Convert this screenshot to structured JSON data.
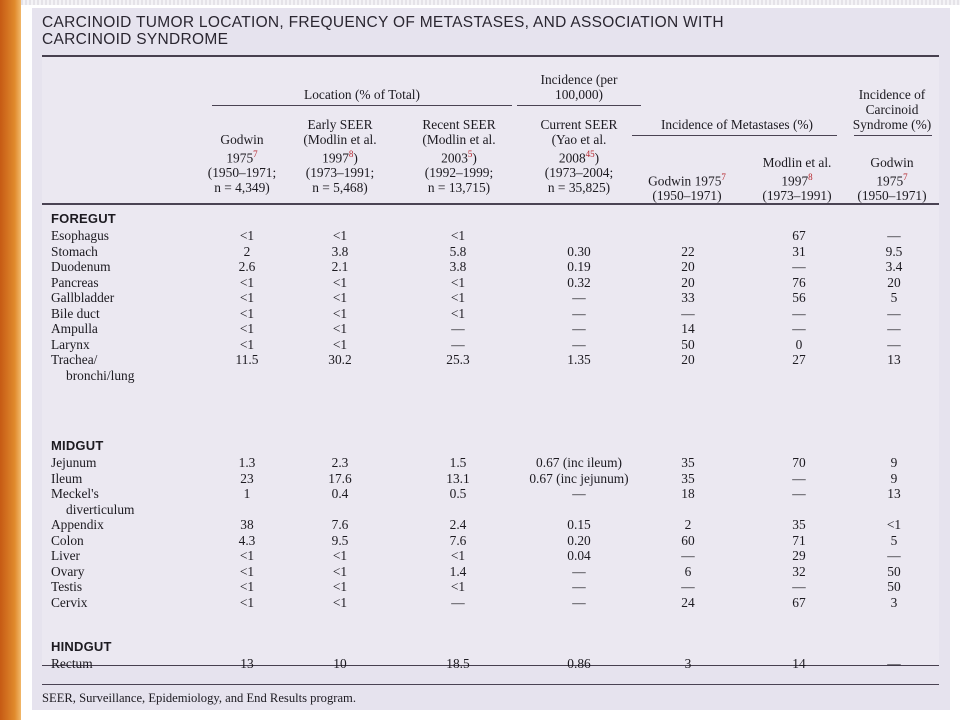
{
  "title": {
    "line1": "CARCINOID TUMOR LOCATION, FREQUENCY OF METASTASES, AND ASSOCIATION WITH",
    "line2": "CARCINOID SYNDROME"
  },
  "header": {
    "location_group": "Location (% of Total)",
    "incidence_group_l1": "Incidence (per",
    "incidence_group_l2": "100,000)",
    "metastases_group": "Incidence of Metastases (%)",
    "syndrome_l1": "Incidence of",
    "syndrome_l2": "Carcinoid",
    "syndrome_l3": "Syndrome (%)",
    "cols": [
      {
        "l1": "Godwin",
        "l2": "1975",
        "ref": "7",
        "l3": "(1950–1971;",
        "l4": "n = 4,349)"
      },
      {
        "l1": "Early SEER",
        "l2": "(Modlin et al.",
        "l3": "1997",
        "ref": "8",
        "l3b": ")",
        "l4": "(1973–1991;",
        "l5": "n = 5,468)"
      },
      {
        "l1": "Recent SEER",
        "l2": "(Modlin et al.",
        "l3": "2003",
        "ref": "5",
        "l3b": ")",
        "l4": "(1992–1999;",
        "l5": "n = 13,715)"
      },
      {
        "l1": "Current SEER",
        "l2": "(Yao et al.",
        "l3": "2008",
        "ref": "45",
        "l3b": ")",
        "l4": "(1973–2004;",
        "l5": "n = 35,825)"
      },
      {
        "l1": "Godwin 1975",
        "ref": "7",
        "l2": "(1950–1971)"
      },
      {
        "l1": "Modlin et al.",
        "l2": "1997",
        "ref": "8",
        "l3": "(1973–1991)"
      },
      {
        "l1": "Godwin",
        "l2": "1975",
        "ref": "7",
        "l3": "(1950–1971)"
      }
    ]
  },
  "sections": {
    "foregut": "FOREGUT",
    "midgut": "MIDGUT",
    "hindgut": "HINDGUT"
  },
  "rows": {
    "foregut": [
      {
        "organ": "Esophagus",
        "v": [
          "<1",
          "<1",
          "<1",
          "",
          "",
          "67",
          "—"
        ]
      },
      {
        "organ": "Stomach",
        "v": [
          "2",
          "3.8",
          "5.8",
          "0.30",
          "22",
          "31",
          "9.5"
        ]
      },
      {
        "organ": "Duodenum",
        "v": [
          "2.6",
          "2.1",
          "3.8",
          "0.19",
          "20",
          "—",
          "3.4"
        ]
      },
      {
        "organ": "Pancreas",
        "v": [
          "<1",
          "<1",
          "<1",
          "0.32",
          "20",
          "76",
          "20"
        ]
      },
      {
        "organ": "Gallbladder",
        "v": [
          "<1",
          "<1",
          "<1",
          "—",
          "33",
          "56",
          "5"
        ]
      },
      {
        "organ": "Bile duct",
        "v": [
          "<1",
          "<1",
          "<1",
          "—",
          "—",
          "—",
          "—"
        ]
      },
      {
        "organ": "Ampulla",
        "v": [
          "<1",
          "<1",
          "—",
          "—",
          "14",
          "—",
          "—"
        ]
      },
      {
        "organ": "Larynx",
        "v": [
          "<1",
          "<1",
          "—",
          "—",
          "50",
          "0",
          "—"
        ]
      },
      {
        "organ": "Trachea/",
        "organ2": "bronchi/lung",
        "v": [
          "11.5",
          "30.2",
          "25.3",
          "1.35",
          "20",
          "27",
          "13"
        ]
      }
    ],
    "midgut": [
      {
        "organ": "Jejunum",
        "v": [
          "1.3",
          "2.3",
          "1.5",
          "0.67 (inc ileum)",
          "35",
          "70",
          "9"
        ]
      },
      {
        "organ": "Ileum",
        "v": [
          "23",
          "17.6",
          "13.1",
          "0.67 (inc jejunum)",
          "35",
          "—",
          "9"
        ]
      },
      {
        "organ": "Meckel's",
        "organ2": "diverticulum",
        "v": [
          "1",
          "0.4",
          "0.5",
          "—",
          "18",
          "—",
          "13"
        ]
      },
      {
        "organ": "Appendix",
        "v": [
          "38",
          "7.6",
          "2.4",
          "0.15",
          "2",
          "35",
          "<1"
        ]
      },
      {
        "organ": "Colon",
        "v": [
          "4.3",
          "9.5",
          "7.6",
          "0.20",
          "60",
          "71",
          "5"
        ]
      },
      {
        "organ": "Liver",
        "v": [
          "<1",
          "<1",
          "<1",
          "0.04",
          "—",
          "29",
          "—"
        ]
      },
      {
        "organ": "Ovary",
        "v": [
          "<1",
          "<1",
          "1.4",
          "—",
          "6",
          "32",
          "50"
        ]
      },
      {
        "organ": "Testis",
        "v": [
          "<1",
          "<1",
          "<1",
          "—",
          "—",
          "—",
          "50"
        ]
      },
      {
        "organ": "Cervix",
        "v": [
          "<1",
          "<1",
          "—",
          "—",
          "24",
          "67",
          "3"
        ]
      }
    ],
    "hindgut": [
      {
        "organ": "Rectum",
        "v": [
          "13",
          "10",
          "18.5",
          "0.86",
          "3",
          "14",
          "—"
        ]
      }
    ]
  },
  "footnote": "SEER, Surveillance, Epidemiology, and End Results program."
}
